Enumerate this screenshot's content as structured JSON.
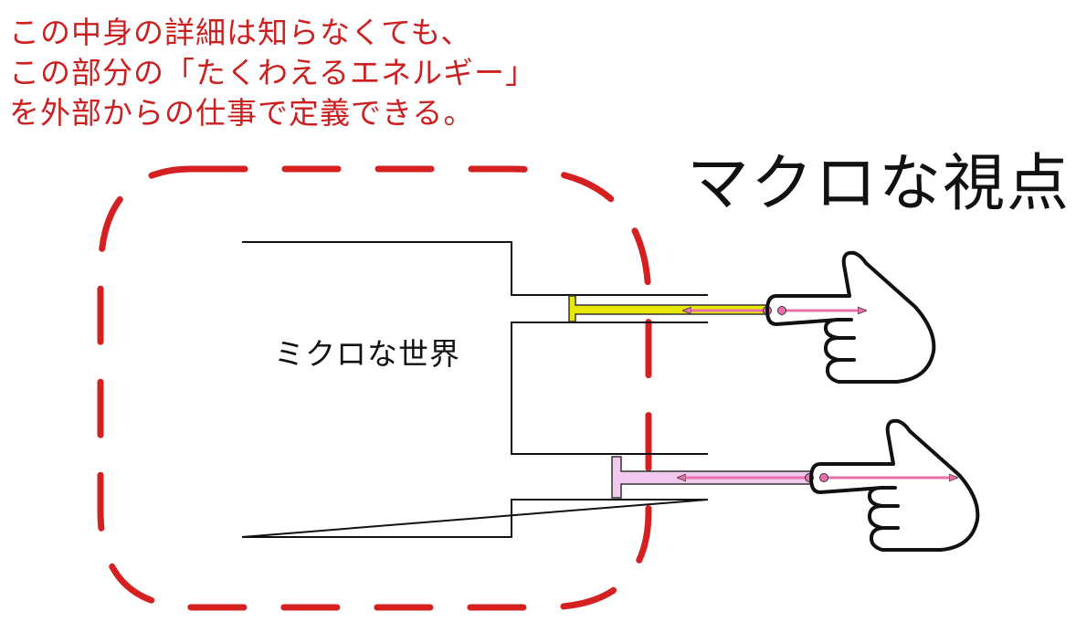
{
  "annotation": {
    "lines": [
      "この中身の詳細は知らなくても、",
      "この部分の「たくわえるエネルギー」",
      "を外部からの仕事で定義できる。"
    ]
  },
  "macro_label": "マクロな視点",
  "micro_label": "ミクロな世界",
  "colors": {
    "boundary": "#d42020",
    "annotation_text": "#cc1f1f",
    "piston_top": "#e8e800",
    "piston_bottom": "#f0c8f0",
    "arrow": "#e86fa8",
    "outline": "#111111"
  },
  "icons": {
    "hand": "pointing-hand-icon",
    "arrow": "double-headed-arrow-icon"
  }
}
